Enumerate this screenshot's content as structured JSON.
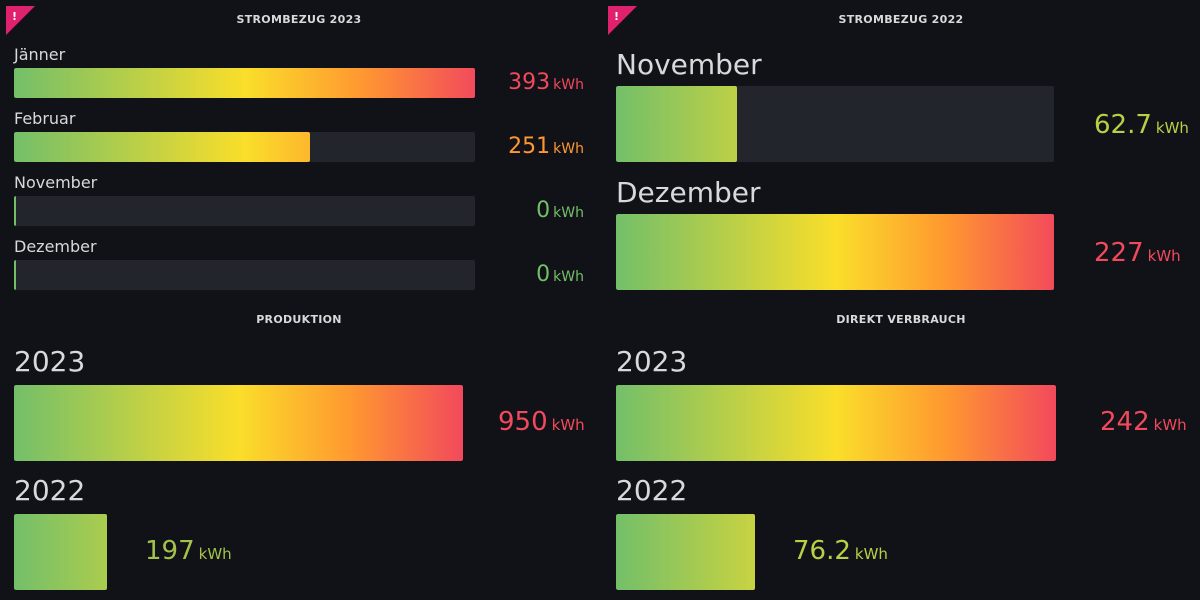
{
  "colors": {
    "background": "#111217",
    "track": "#22252b",
    "green": "#73bf69",
    "yellow": "#fade2a",
    "orange": "#ff9830",
    "red": "#f2495c",
    "alert": "#e0226e"
  },
  "panels": {
    "strombezug_2023": {
      "title": "STROMBEZUG 2023",
      "rows": [
        {
          "label": "Jänner",
          "value": "393",
          "unit": "kWh",
          "fraction": 1.0,
          "color": "#f2495c"
        },
        {
          "label": "Februar",
          "value": "251",
          "unit": "kWh",
          "fraction": 0.64,
          "color": "#ff9830"
        },
        {
          "label": "November",
          "value": "0",
          "unit": "kWh",
          "fraction": 0.0,
          "color": "#73bf69"
        },
        {
          "label": "Dezember",
          "value": "0",
          "unit": "kWh",
          "fraction": 0.0,
          "color": "#73bf69"
        }
      ]
    },
    "strombezug_2022": {
      "title": "STROMBEZUG 2022",
      "rows": [
        {
          "label": "November",
          "value": "62.7",
          "unit": "kWh",
          "fraction": 0.276,
          "color": "#b5d145"
        },
        {
          "label": "Dezember",
          "value": "227",
          "unit": "kWh",
          "fraction": 1.0,
          "color": "#f2495c"
        }
      ]
    },
    "produktion": {
      "title": "PRODUKTION",
      "rows": [
        {
          "label": "2023",
          "value": "950",
          "unit": "kWh",
          "fraction": 1.0,
          "color": "#f2495c"
        },
        {
          "label": "2022",
          "value": "197",
          "unit": "kWh",
          "fraction": 0.207,
          "color": "#a3c24a"
        }
      ]
    },
    "direkt_verbrauch": {
      "title": "DIREKT VERBRAUCH",
      "rows": [
        {
          "label": "2023",
          "value": "242",
          "unit": "kWh",
          "fraction": 1.0,
          "color": "#f2495c"
        },
        {
          "label": "2022",
          "value": "76.2",
          "unit": "kWh",
          "fraction": 0.315,
          "color": "#b5d145"
        }
      ]
    }
  }
}
